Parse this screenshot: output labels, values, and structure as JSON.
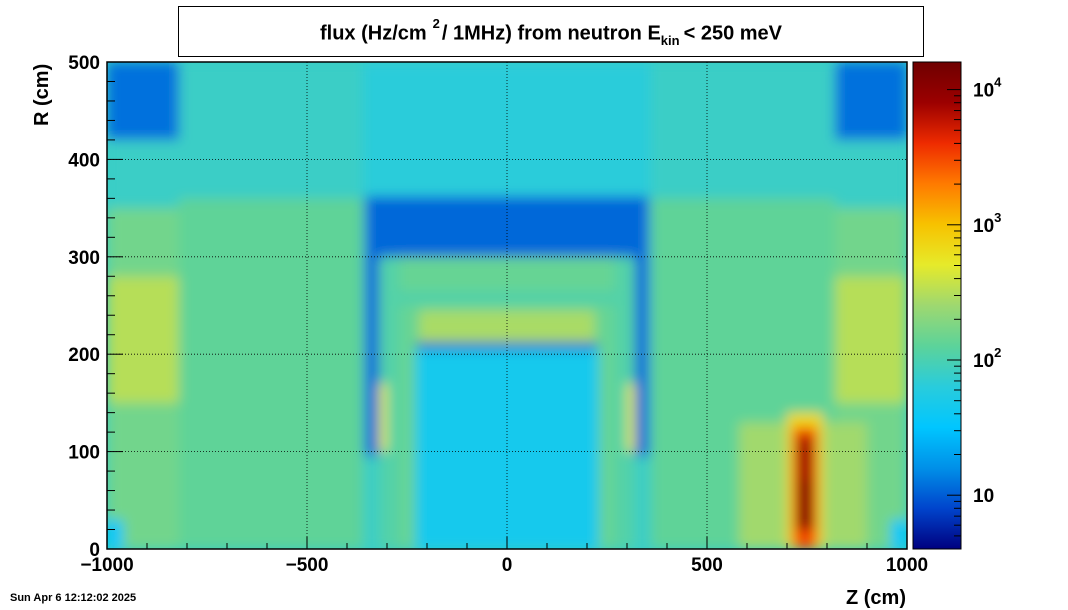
{
  "title": {
    "prefix": "flux (Hz/cm",
    "sup": "2",
    "middle": "/ 1MHz) from   neutron  E",
    "sub": "kin",
    "suffix": "< 250 meV"
  },
  "footer": {
    "date": "Sun Apr  6 12:12:02 2025"
  },
  "colors": {
    "palette": [
      "#00007f",
      "#0044cc",
      "#0090e8",
      "#00c6ff",
      "#29ccdc",
      "#5cd39a",
      "#9ed870",
      "#e6ea2a",
      "#f7c200",
      "#ff7a00",
      "#ee2b00",
      "#9c0000",
      "#6f0000"
    ],
    "frame": "#000000",
    "grid": "#000000"
  },
  "chart_data": {
    "type": "heatmap",
    "xlabel": "Z (cm)",
    "ylabel": "R (cm)",
    "xlim": [
      -1000,
      1000
    ],
    "ylim": [
      0,
      500
    ],
    "x_ticks": [
      -1000,
      -500,
      0,
      500,
      1000
    ],
    "x_tick_labels": [
      "−1000",
      "−500",
      "0",
      "500",
      "1000"
    ],
    "y_ticks": [
      0,
      100,
      200,
      300,
      400,
      500
    ],
    "y_tick_labels": [
      "0",
      "100",
      "200",
      "300",
      "400",
      "500"
    ],
    "grid": true,
    "colorbar": {
      "scale": "log",
      "range": [
        4,
        16000
      ],
      "ticks": [
        10,
        100,
        1000,
        10000
      ],
      "tick_labels": [
        {
          "base": "10",
          "exp": ""
        },
        {
          "base": "10",
          "exp": "2"
        },
        {
          "base": "10",
          "exp": "3"
        },
        {
          "base": "10",
          "exp": "4"
        }
      ]
    },
    "background_value": 80,
    "regions": [
      {
        "z": [
          -1000,
          1000
        ],
        "r": [
          0,
          500
        ],
        "value": 80
      },
      {
        "z": [
          -1000,
          -820
        ],
        "r": [
          0,
          350
        ],
        "value": 160
      },
      {
        "z": [
          -1000,
          -820
        ],
        "r": [
          150,
          280
        ],
        "value": 320
      },
      {
        "z": [
          820,
          1000
        ],
        "r": [
          0,
          350
        ],
        "value": 160
      },
      {
        "z": [
          820,
          1000
        ],
        "r": [
          150,
          280
        ],
        "value": 320
      },
      {
        "z": [
          -1000,
          -820
        ],
        "r": [
          420,
          500
        ],
        "value": 12
      },
      {
        "z": [
          820,
          1000
        ],
        "r": [
          420,
          500
        ],
        "value": 12
      },
      {
        "z": [
          -1000,
          -960
        ],
        "r": [
          0,
          30
        ],
        "value": 35
      },
      {
        "z": [
          960,
          1000
        ],
        "r": [
          0,
          30
        ],
        "value": 35
      },
      {
        "z": [
          -820,
          -360
        ],
        "r": [
          0,
          360
        ],
        "value": 130
      },
      {
        "z": [
          360,
          820
        ],
        "r": [
          0,
          360
        ],
        "value": 130
      },
      {
        "z": [
          580,
          900
        ],
        "r": [
          0,
          130
        ],
        "value": 260
      },
      {
        "z": [
          -360,
          360
        ],
        "r": [
          360,
          500
        ],
        "value": 65
      },
      {
        "z": [
          -355,
          355
        ],
        "r": [
          300,
          362
        ],
        "value": 11
      },
      {
        "z": [
          -355,
          -320
        ],
        "r": [
          95,
          362
        ],
        "value": 11
      },
      {
        "z": [
          320,
          355
        ],
        "r": [
          95,
          362
        ],
        "value": 11
      },
      {
        "z": [
          -320,
          320
        ],
        "r": [
          0,
          300
        ],
        "value": 110
      },
      {
        "z": [
          -270,
          270
        ],
        "r": [
          0,
          300
        ],
        "value": 140
      },
      {
        "z": [
          -230,
          230
        ],
        "r": [
          0,
          205
        ],
        "value": 45
      },
      {
        "z": [
          -220,
          220
        ],
        "r": [
          210,
          245
        ],
        "value": 280
      },
      {
        "z": [
          -225,
          225
        ],
        "r": [
          205,
          212
        ],
        "value": 9
      },
      {
        "z": [
          -320,
          -300
        ],
        "r": [
          100,
          170
        ],
        "value": 500
      },
      {
        "z": [
          300,
          320
        ],
        "r": [
          100,
          170
        ],
        "value": 500
      },
      {
        "z": [
          -320,
          320
        ],
        "r": [
          250,
          265
        ],
        "value": 110
      },
      {
        "z": [
          700,
          790
        ],
        "r": [
          0,
          140
        ],
        "value": 700
      },
      {
        "z": [
          715,
          775
        ],
        "r": [
          0,
          125
        ],
        "value": 3000
      },
      {
        "z": [
          725,
          765
        ],
        "r": [
          20,
          115
        ],
        "value": 8000
      },
      {
        "z": [
          730,
          760
        ],
        "r": [
          20,
          70
        ],
        "value": 14000
      }
    ]
  }
}
